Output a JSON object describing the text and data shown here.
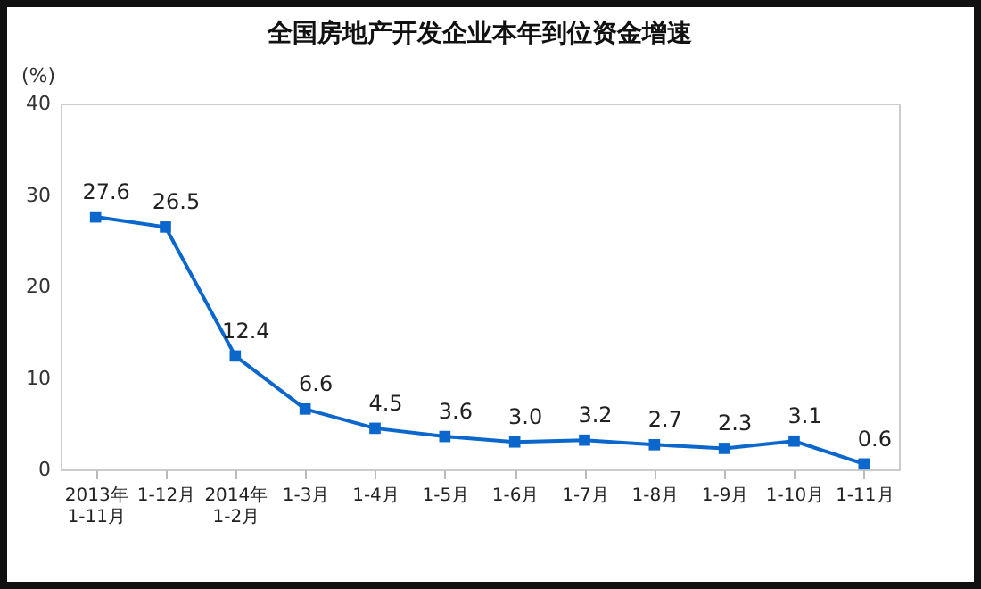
{
  "chart_data": {
    "type": "line",
    "title": "全国房地产开发企业本年到位资金增速",
    "ylabel": "(%)",
    "categories": [
      "2013年\n1-11月",
      "1-12月",
      "2014年\n1-2月",
      "1-3月",
      "1-4月",
      "1-5月",
      "1-6月",
      "1-7月",
      "1-8月",
      "1-9月",
      "1-10月",
      "1-11月"
    ],
    "series": [
      {
        "color": "#0b67cc",
        "values": [
          27.6,
          26.5,
          12.4,
          6.6,
          4.5,
          3.6,
          3.0,
          3.2,
          2.7,
          2.3,
          3.1,
          0.6
        ],
        "value_labels": [
          "27.6",
          "26.5",
          "12.4",
          "6.6",
          "4.5",
          "3.6",
          "3.0",
          "3.2",
          "2.7",
          "2.3",
          "3.1",
          "0.6"
        ]
      }
    ],
    "ylim": [
      0,
      40
    ],
    "yticks": [
      0,
      10,
      20,
      30,
      40
    ],
    "grid": false,
    "marker": "square",
    "line_style": "solid"
  }
}
